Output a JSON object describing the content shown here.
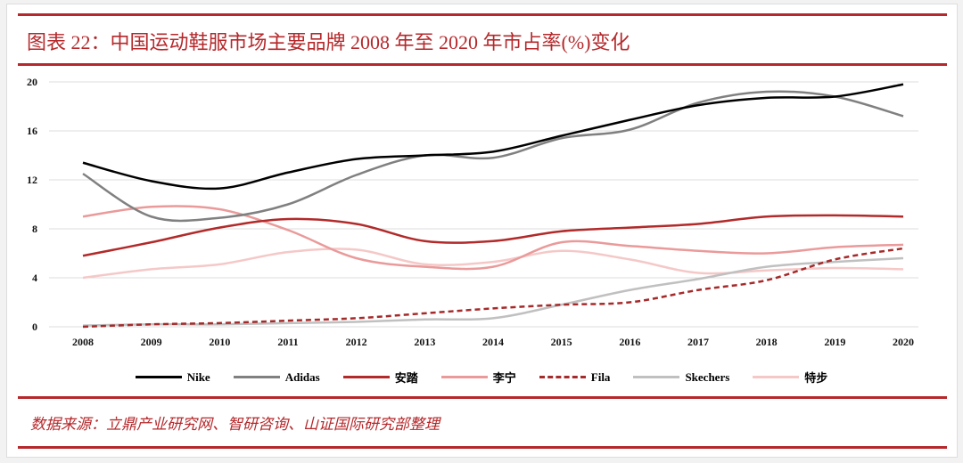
{
  "title": "图表 22：中国运动鞋服市场主要品牌 2008 年至 2020 年市占率(%)变化",
  "source": "数据来源：立鼎产业研究网、智研咨询、山证国际研究部整理",
  "chart_data": {
    "type": "line",
    "title": "",
    "xlabel": "",
    "ylabel": "",
    "ylim": [
      0,
      20
    ],
    "yticks": [
      0,
      4,
      8,
      12,
      16,
      20
    ],
    "grid": true,
    "legend": "bottom",
    "smoothed": true,
    "categories": [
      "2008",
      "2009",
      "2010",
      "2011",
      "2012",
      "2013",
      "2014",
      "2015",
      "2016",
      "2017",
      "2018",
      "2019",
      "2020"
    ],
    "series": [
      {
        "name": "Nike",
        "color": "#000000",
        "dashed": false,
        "values": [
          13.4,
          11.9,
          11.3,
          12.6,
          13.7,
          14.0,
          14.3,
          15.6,
          16.9,
          18.1,
          18.7,
          18.8,
          19.8
        ]
      },
      {
        "name": "Adidas",
        "color": "#808080",
        "dashed": false,
        "values": [
          12.5,
          9.0,
          8.9,
          10.0,
          12.4,
          14.0,
          13.8,
          15.4,
          16.1,
          18.3,
          19.2,
          18.8,
          17.2
        ]
      },
      {
        "name": "安踏",
        "color": "#b22a2a",
        "dashed": false,
        "values": [
          5.8,
          6.9,
          8.1,
          8.8,
          8.4,
          7.0,
          7.0,
          7.8,
          8.1,
          8.4,
          9.0,
          9.1,
          9.0
        ]
      },
      {
        "name": "李宁",
        "color": "#ea9a9a",
        "dashed": false,
        "values": [
          9.0,
          9.8,
          9.6,
          7.9,
          5.6,
          4.9,
          4.9,
          6.9,
          6.6,
          6.2,
          6.0,
          6.5,
          6.7
        ]
      },
      {
        "name": "Fila",
        "color": "#a52a2a",
        "dashed": true,
        "values": [
          0.0,
          0.2,
          0.3,
          0.5,
          0.7,
          1.1,
          1.5,
          1.8,
          2.0,
          3.0,
          3.8,
          5.5,
          6.4
        ]
      },
      {
        "name": "Skechers",
        "color": "#c0c0c0",
        "dashed": false,
        "values": [
          0.1,
          0.2,
          0.2,
          0.3,
          0.4,
          0.6,
          0.7,
          1.8,
          3.0,
          3.9,
          4.9,
          5.3,
          5.6
        ]
      },
      {
        "name": "特步",
        "color": "#f5c8c8",
        "dashed": false,
        "values": [
          4.0,
          4.7,
          5.1,
          6.1,
          6.3,
          5.1,
          5.3,
          6.2,
          5.5,
          4.4,
          4.6,
          4.8,
          4.7
        ]
      }
    ]
  }
}
